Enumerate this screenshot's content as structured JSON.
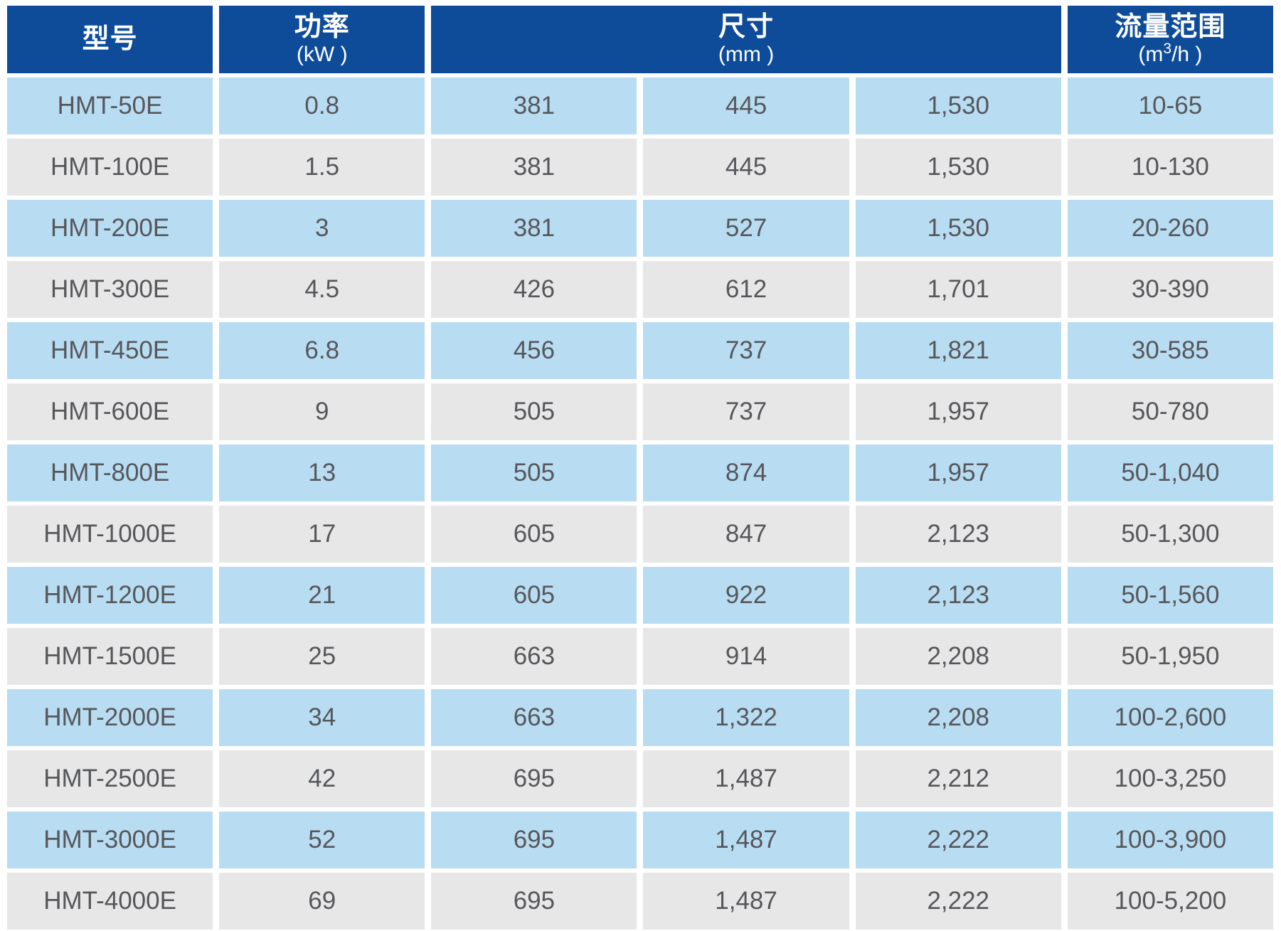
{
  "table": {
    "header": {
      "model": {
        "title": "型号",
        "unit": ""
      },
      "power": {
        "title": "功率",
        "unit": "(kW )"
      },
      "dimensions": {
        "title": "尺寸",
        "unit": "(mm )"
      },
      "flow": {
        "title": "流量范围",
        "unit_pre": "(m",
        "unit_sup": "3",
        "unit_post": "/h )"
      }
    },
    "rows": [
      {
        "model": "HMT-50E",
        "power": "0.8",
        "dim1": "381",
        "dim2": "445",
        "dim3": "1,530",
        "flow": "10-65"
      },
      {
        "model": "HMT-100E",
        "power": "1.5",
        "dim1": "381",
        "dim2": "445",
        "dim3": "1,530",
        "flow": "10-130"
      },
      {
        "model": "HMT-200E",
        "power": "3",
        "dim1": "381",
        "dim2": "527",
        "dim3": "1,530",
        "flow": "20-260"
      },
      {
        "model": "HMT-300E",
        "power": "4.5",
        "dim1": "426",
        "dim2": "612",
        "dim3": "1,701",
        "flow": "30-390"
      },
      {
        "model": "HMT-450E",
        "power": "6.8",
        "dim1": "456",
        "dim2": "737",
        "dim3": "1,821",
        "flow": "30-585"
      },
      {
        "model": "HMT-600E",
        "power": "9",
        "dim1": "505",
        "dim2": "737",
        "dim3": "1,957",
        "flow": "50-780"
      },
      {
        "model": "HMT-800E",
        "power": "13",
        "dim1": "505",
        "dim2": "874",
        "dim3": "1,957",
        "flow": "50-1,040"
      },
      {
        "model": "HMT-1000E",
        "power": "17",
        "dim1": "605",
        "dim2": "847",
        "dim3": "2,123",
        "flow": "50-1,300"
      },
      {
        "model": "HMT-1200E",
        "power": "21",
        "dim1": "605",
        "dim2": "922",
        "dim3": "2,123",
        "flow": "50-1,560"
      },
      {
        "model": "HMT-1500E",
        "power": "25",
        "dim1": "663",
        "dim2": "914",
        "dim3": "2,208",
        "flow": "50-1,950"
      },
      {
        "model": "HMT-2000E",
        "power": "34",
        "dim1": "663",
        "dim2": "1,322",
        "dim3": "2,208",
        "flow": "100-2,600"
      },
      {
        "model": "HMT-2500E",
        "power": "42",
        "dim1": "695",
        "dim2": "1,487",
        "dim3": "2,212",
        "flow": "100-3,250"
      },
      {
        "model": "HMT-3000E",
        "power": "52",
        "dim1": "695",
        "dim2": "1,487",
        "dim3": "2,222",
        "flow": "100-3,900"
      },
      {
        "model": "HMT-4000E",
        "power": "69",
        "dim1": "695",
        "dim2": "1,487",
        "dim3": "2,222",
        "flow": "100-5,200"
      }
    ]
  },
  "colors": {
    "header_bg": "#0e4c9a",
    "header_text": "#ffffff",
    "row_blue": "#b8dcf2",
    "row_gray": "#e7e7e7",
    "cell_text": "#56575b",
    "page_bg": "#ffffff"
  }
}
